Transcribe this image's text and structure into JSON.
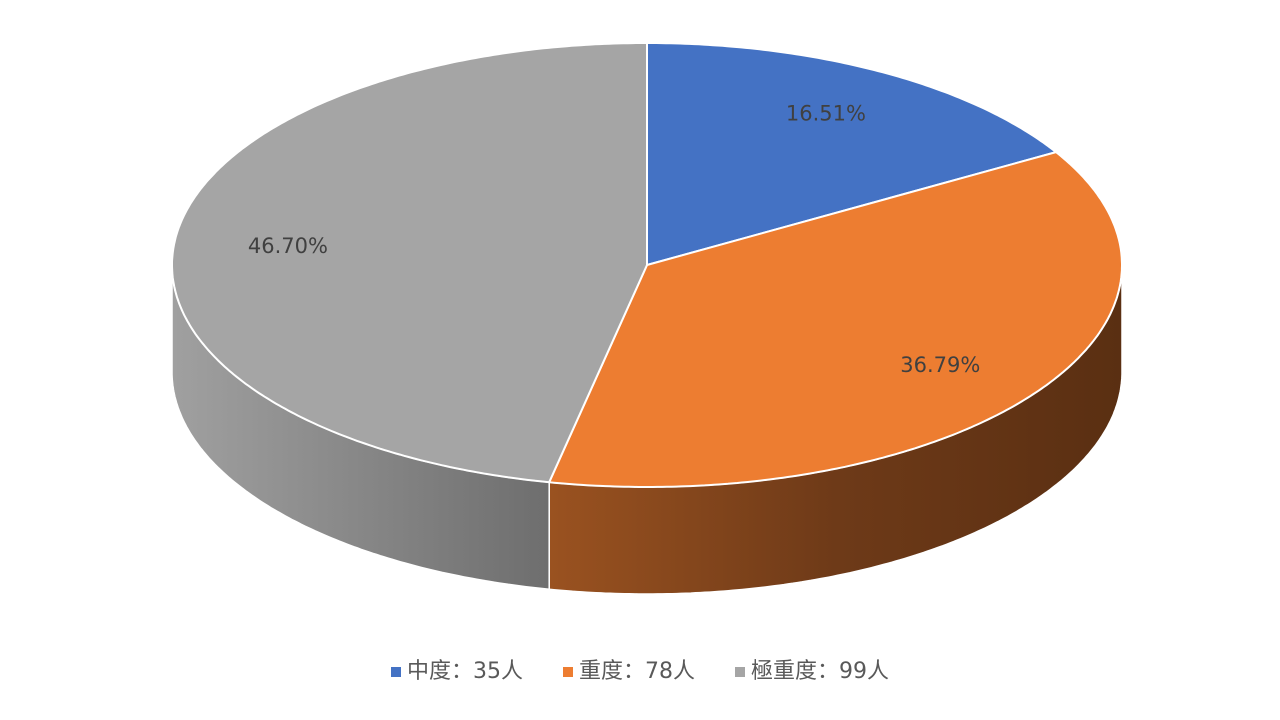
{
  "chart_data": {
    "type": "pie",
    "categories": [
      "中度：35人",
      "重度：78人",
      "極重度：99人"
    ],
    "values": [
      16.51,
      36.79,
      46.7
    ],
    "value_labels": [
      "16.51%",
      "36.79%",
      "46.70%"
    ],
    "colors": [
      "#4472c4",
      "#ed7d31",
      "#a5a5a5"
    ],
    "legend": "bottom"
  }
}
